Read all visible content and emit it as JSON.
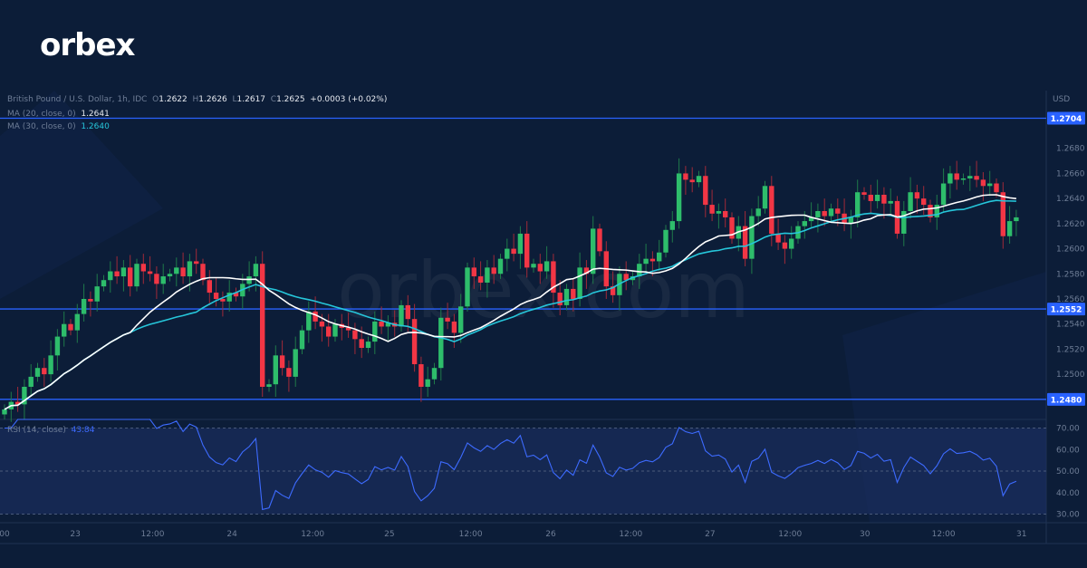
{
  "brand": {
    "logo_text": "orbex",
    "watermark": "orbex.com"
  },
  "header": {
    "symbol": "British Pound / U.S. Dollar, 1h, IDC",
    "open_label": "O",
    "open": "1.2622",
    "high_label": "H",
    "high": "1.2626",
    "low_label": "L",
    "low": "1.2617",
    "close_label": "C",
    "close": "1.2625",
    "change": "+0.0003 (+0.02%)"
  },
  "indicators": {
    "ma20": {
      "label": "MA (20, close, 0)",
      "value": "1.2641",
      "color": "#ffffff"
    },
    "ma30": {
      "label": "MA (30, close, 0)",
      "value": "1.2640",
      "color": "#26c6da"
    },
    "rsi": {
      "label": "RSI (14, close)",
      "value": "43.84",
      "color": "#3d6bff"
    }
  },
  "price_axis": {
    "currency": "USD",
    "ticks": [
      "1.2680",
      "1.2660",
      "1.2640",
      "1.2620",
      "1.2600",
      "1.2580",
      "1.2560",
      "1.2540",
      "1.2520",
      "1.2500"
    ],
    "range": [
      1.2464,
      1.2726
    ]
  },
  "rsi_axis": {
    "ticks": [
      "70.00",
      "60.00",
      "50.00",
      "40.00",
      "30.00"
    ],
    "band": [
      30,
      70
    ],
    "range": [
      26,
      74
    ]
  },
  "time_axis": {
    "ticks": [
      "00",
      "23",
      "12:00",
      "24",
      "12:00",
      "25",
      "12:00",
      "26",
      "12:00",
      "27",
      "12:00",
      "30",
      "12:00",
      "31"
    ]
  },
  "levels": [
    {
      "label": "1.2704",
      "value": 1.2704
    },
    {
      "label": "1.2552",
      "value": 1.2552
    },
    {
      "label": "1.2480",
      "value": 1.248
    }
  ],
  "colors": {
    "up": "#2ebd6b",
    "down": "#f23645",
    "level": "#2962ff",
    "background": "#0c1d38"
  },
  "chart_data": {
    "type": "candlestick",
    "interval": "1h",
    "first_open": 1.2468,
    "close": [
      1.2472,
      1.2478,
      1.2476,
      1.249,
      1.2498,
      1.2505,
      1.25,
      1.2515,
      1.253,
      1.254,
      1.2535,
      1.2548,
      1.256,
      1.2558,
      1.257,
      1.2575,
      1.2582,
      1.2578,
      1.2585,
      1.257,
      1.2588,
      1.2582,
      1.258,
      1.2572,
      1.2578,
      1.258,
      1.2585,
      1.2578,
      1.259,
      1.2588,
      1.2575,
      1.2565,
      1.256,
      1.2558,
      1.2565,
      1.2562,
      1.2572,
      1.2578,
      1.2588,
      1.249,
      1.2492,
      1.2515,
      1.2505,
      1.2498,
      1.252,
      1.2535,
      1.255,
      1.2542,
      1.2538,
      1.253,
      1.254,
      1.2537,
      1.2535,
      1.2528,
      1.2521,
      1.2526,
      1.2542,
      1.2538,
      1.2541,
      1.2538,
      1.2555,
      1.2544,
      1.2508,
      1.249,
      1.2496,
      1.2505,
      1.2545,
      1.2542,
      1.2533,
      1.2554,
      1.2585,
      1.2578,
      1.2573,
      1.2585,
      1.258,
      1.2592,
      1.26,
      1.2596,
      1.2612,
      1.2585,
      1.2588,
      1.2582,
      1.259,
      1.2565,
      1.2555,
      1.2568,
      1.256,
      1.2585,
      1.258,
      1.2616,
      1.2598,
      1.257,
      1.2563,
      1.258,
      1.2575,
      1.2578,
      1.2588,
      1.2592,
      1.259,
      1.2597,
      1.2615,
      1.2622,
      1.266,
      1.2655,
      1.2653,
      1.2658,
      1.2635,
      1.2628,
      1.263,
      1.2625,
      1.2608,
      1.2618,
      1.2592,
      1.2626,
      1.2632,
      1.265,
      1.2612,
      1.2605,
      1.26,
      1.2608,
      1.2618,
      1.2622,
      1.2625,
      1.263,
      1.2626,
      1.2632,
      1.2628,
      1.262,
      1.2625,
      1.2645,
      1.2643,
      1.2638,
      1.2643,
      1.2636,
      1.2638,
      1.2612,
      1.263,
      1.2645,
      1.264,
      1.2635,
      1.2625,
      1.2635,
      1.2652,
      1.266,
      1.2655,
      1.2656,
      1.2658,
      1.2655,
      1.265,
      1.2652,
      1.2645,
      1.261,
      1.2622,
      1.2625
    ]
  }
}
